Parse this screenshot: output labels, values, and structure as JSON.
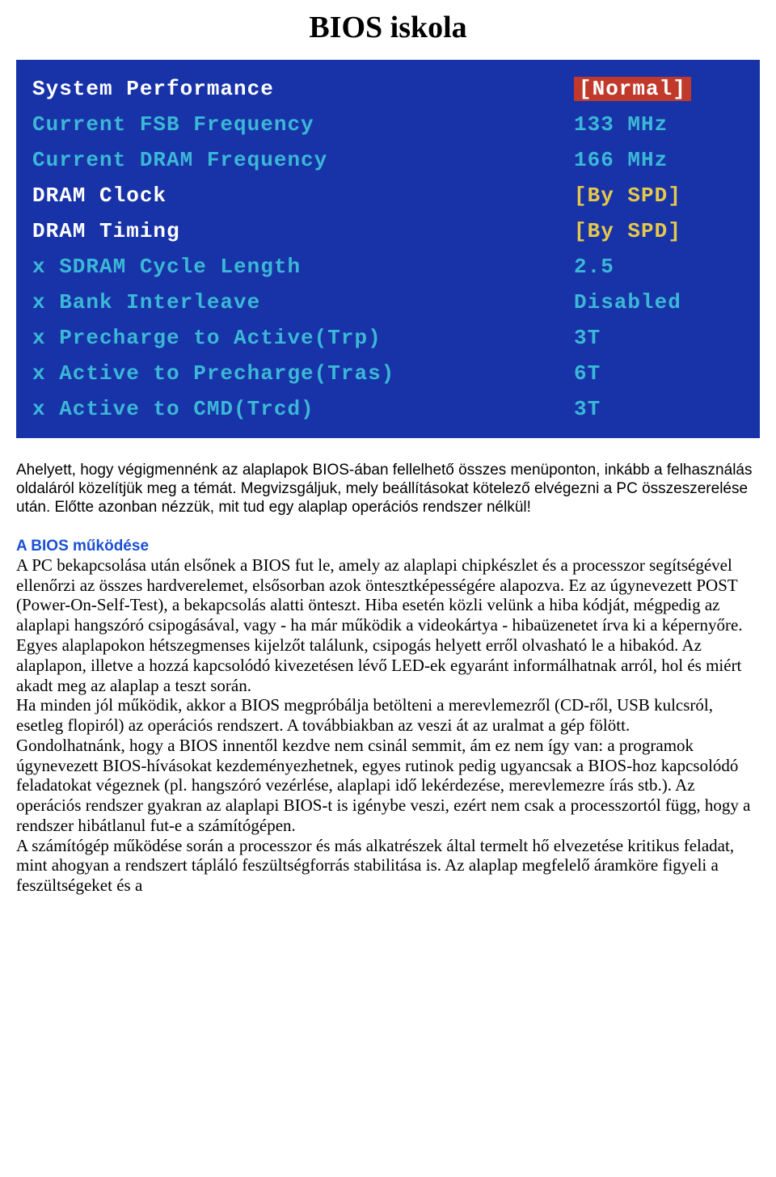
{
  "title": "BIOS iskola",
  "bios": {
    "background_color": "#1833a8",
    "text_colors": {
      "white": "#ffffff",
      "cyan": "#3bb8d6",
      "yellow": "#e6c84a"
    },
    "highlight_bg": "#c0392b",
    "font_family": "Courier New",
    "font_size_pt": 20,
    "rows": [
      {
        "label": "System Performance",
        "value": "[Normal]",
        "label_style": "white",
        "value_style": "highlight",
        "prefix": ""
      },
      {
        "label": "Current FSB Frequency",
        "value": "133 MHz",
        "label_style": "cyan",
        "value_style": "cyan",
        "prefix": ""
      },
      {
        "label": "Current DRAM Frequency",
        "value": "166 MHz",
        "label_style": "cyan",
        "value_style": "cyan",
        "prefix": ""
      },
      {
        "label": "DRAM Clock",
        "value": "[By SPD]",
        "label_style": "white",
        "value_style": "yellow",
        "prefix": ""
      },
      {
        "label": "DRAM Timing",
        "value": "[By SPD]",
        "label_style": "white",
        "value_style": "yellow",
        "prefix": ""
      },
      {
        "label": "SDRAM Cycle Length",
        "value": "2.5",
        "label_style": "cyan",
        "value_style": "cyan",
        "prefix": "x "
      },
      {
        "label": "Bank Interleave",
        "value": "Disabled",
        "label_style": "cyan",
        "value_style": "cyan",
        "prefix": "x "
      },
      {
        "label": "Precharge to Active(Trp)",
        "value": "3T",
        "label_style": "cyan",
        "value_style": "cyan",
        "prefix": "x "
      },
      {
        "label": "Active to Precharge(Tras)",
        "value": "6T",
        "label_style": "cyan",
        "value_style": "cyan",
        "prefix": "x "
      },
      {
        "label": "Active to CMD(Trcd)",
        "value": "3T",
        "label_style": "cyan",
        "value_style": "cyan",
        "prefix": "x "
      }
    ]
  },
  "intro_paragraph": "Ahelyett, hogy végigmennénk az alaplapok BIOS-ában fellelhető összes menüponton, inkább a felhasználás oldaláról közelítjük meg a témát. Megvizsgáljuk, mely beállításokat kötelező elvégezni a PC összeszerelése után. Előtte azonban nézzük, mit tud egy alaplap operációs rendszer nélkül!",
  "section_heading": "A BIOS működése",
  "body_paragraph": "A PC bekapcsolása után elsőnek a BIOS fut le, amely az alaplapi chipkészlet és a processzor segítségével ellenőrzi az összes hardverelemet, elsősorban azok öntesztképességére alapozva. Ez az úgynevezett POST (Power-On-Self-Test), a bekapcsolás alatti önteszt. Hiba esetén közli velünk a hiba kódját, mégpedig az alaplapi hangszóró csipogásával, vagy - ha már működik a videokártya - hibaüzenetet írva ki a képernyőre. Egyes alaplapokon hétszegmenses kijelzőt találunk, csipogás helyett erről olvasható le a hibakód. Az alaplapon, illetve a hozzá kapcsolódó kivezetésen lévő LED-ek egyaránt informálhatnak arról, hol és miért akadt meg az alaplap a teszt során.\nHa minden jól működik, akkor a BIOS megpróbálja betölteni a merevlemezről (CD-ről, USB kulcsról, esetleg flopiról) az operációs rendszert. A továbbiakban az veszi át az uralmat a gép fölött.\nGondolhatnánk, hogy a BIOS innentől kezdve nem csinál semmit, ám ez nem így van: a programok úgynevezett BIOS-hívásokat kezdeményezhetnek, egyes rutinok pedig ugyancsak a BIOS-hoz kapcsolódó feladatokat végeznek (pl. hangszóró vezérlése, alaplapi idő lekérdezése, merevlemezre írás stb.). Az operációs rendszer gyakran az alaplapi BIOS-t is igénybe veszi, ezért nem csak a processzortól függ, hogy a rendszer hibátlanul fut-e a számítógépen.\nA számítógép működése során a processzor és más alkatrészek által termelt hő elvezetése kritikus feladat, mint ahogyan a rendszert tápláló feszültségforrás stabilitása is. Az alaplap megfelelő áramköre figyeli a feszültségeket és a"
}
